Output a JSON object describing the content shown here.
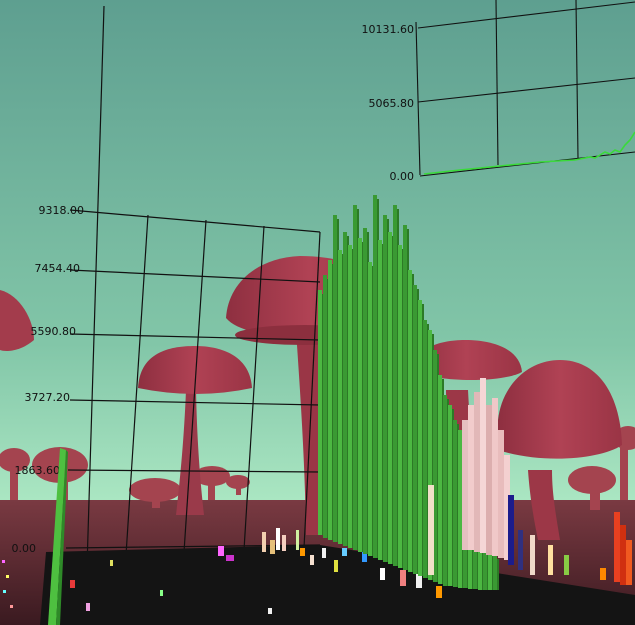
{
  "scene": {
    "sky_top": "#62a595",
    "sky_bottom": "#a9e4c0",
    "ground": "#5a2a30",
    "mushroom_color": "#a83d4f",
    "mushroom_dark": "#7e2c3a"
  },
  "back_chart": {
    "ticks": [
      "10131.60",
      "5065.80",
      "0.00"
    ],
    "line_color": "#35d435"
  },
  "main_chart": {
    "ticks": [
      "9318.00",
      "7454.40",
      "5590.80",
      "3727.20",
      "1863.60",
      "0.00"
    ],
    "series": [
      {
        "color": "#43a63b"
      },
      {
        "color": "#e6bdbd"
      },
      {
        "color": "#2a2a9a"
      },
      {
        "color": "#e8431c"
      }
    ]
  }
}
